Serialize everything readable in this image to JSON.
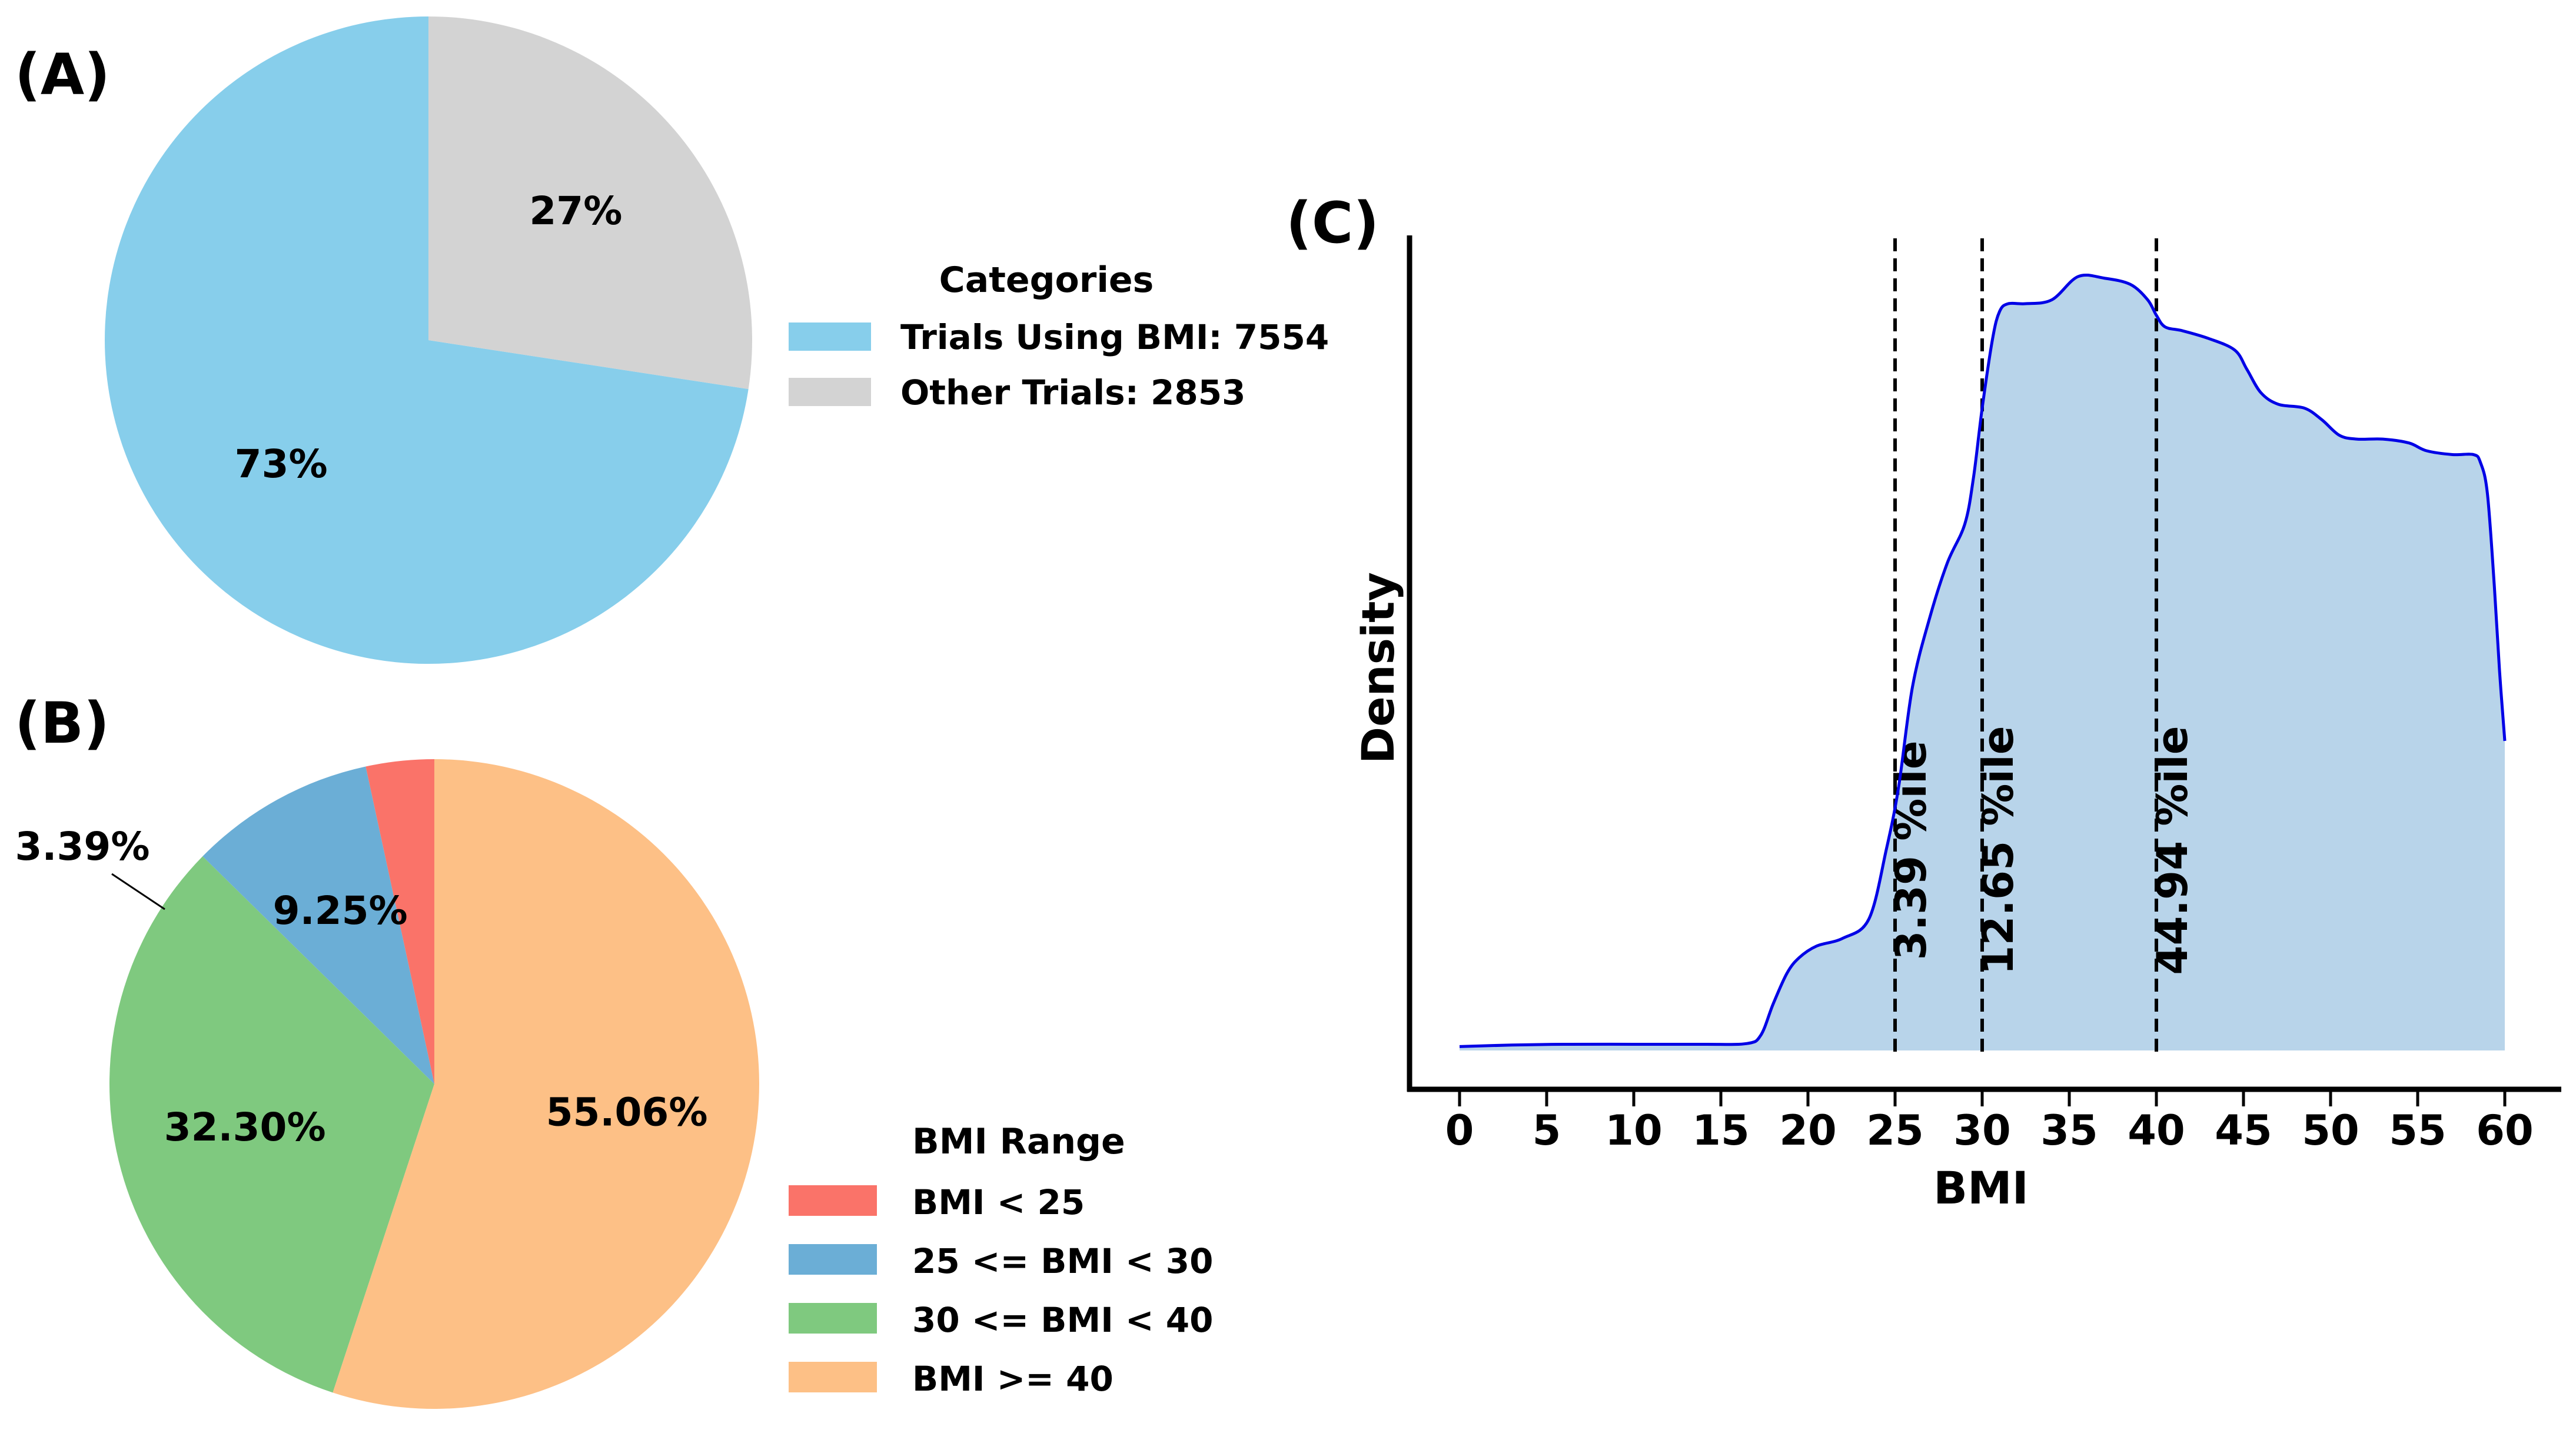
{
  "chart_data": [
    {
      "panel": "(A)",
      "type": "pie",
      "legend_title": "Categories",
      "slices": [
        {
          "label": "Trials Using BMI: 7554",
          "value": 7554,
          "pct_label": "73%",
          "color": "#87CEEB"
        },
        {
          "label": "Other Trials: 2853",
          "value": 2853,
          "pct_label": "27%",
          "color": "#D3D3D3"
        }
      ],
      "legend_placement": "right"
    },
    {
      "panel": "(B)",
      "type": "pie",
      "legend_title": "BMI Range",
      "slices": [
        {
          "label": "BMI < 25",
          "value": 3.39,
          "pct_label": "3.39%",
          "color": "#FA7369"
        },
        {
          "label": "25 <= BMI < 30",
          "value": 9.25,
          "pct_label": "9.25%",
          "color": "#6BAED6"
        },
        {
          "label": "30 <= BMI < 40",
          "value": 32.3,
          "pct_label": "32.30%",
          "color": "#7FC97F"
        },
        {
          "label": "BMI >= 40",
          "value": 55.06,
          "pct_label": "55.06%",
          "color": "#FDC086"
        }
      ],
      "legend_placement": "right"
    },
    {
      "panel": "(C)",
      "type": "area",
      "xlabel": "BMI",
      "ylabel": "Density",
      "xlim": [
        0,
        60
      ],
      "xticks": [
        0,
        5,
        10,
        15,
        20,
        25,
        30,
        35,
        40,
        45,
        50,
        55,
        60
      ],
      "ylim": [
        0,
        1
      ],
      "grid": false,
      "line_color": "#0000E6",
      "fill_color": "#B8D4EA",
      "x": [
        0,
        3,
        6,
        10,
        14,
        16.5,
        17.3,
        18,
        18.8,
        19.5,
        20.5,
        22,
        23.5,
        24.5,
        25.2,
        26,
        27,
        28,
        29,
        29.5,
        30,
        30.6,
        31,
        31.5,
        32.5,
        34,
        35.5,
        37,
        38.5,
        39.5,
        40,
        40.5,
        41.5,
        43,
        44.5,
        45.2,
        46,
        47,
        48.5,
        49.5,
        50.5,
        51.5,
        53,
        54.5,
        55.5,
        57,
        58.2,
        58.6,
        59,
        59.4,
        59.7,
        60
      ],
      "y": [
        0.005,
        0.007,
        0.008,
        0.008,
        0.008,
        0.009,
        0.02,
        0.06,
        0.1,
        0.12,
        0.135,
        0.145,
        0.17,
        0.26,
        0.34,
        0.47,
        0.56,
        0.63,
        0.68,
        0.74,
        0.83,
        0.92,
        0.955,
        0.965,
        0.965,
        0.97,
        1.0,
        0.998,
        0.99,
        0.97,
        0.95,
        0.935,
        0.93,
        0.92,
        0.905,
        0.88,
        0.85,
        0.835,
        0.83,
        0.815,
        0.795,
        0.79,
        0.79,
        0.785,
        0.775,
        0.77,
        0.77,
        0.76,
        0.72,
        0.6,
        0.49,
        0.4
      ],
      "vlines": [
        {
          "x": 25,
          "label": "3.39 %ile"
        },
        {
          "x": 30,
          "label": "12.65 %ile"
        },
        {
          "x": 40,
          "label": "44.94 %ile"
        }
      ]
    }
  ]
}
